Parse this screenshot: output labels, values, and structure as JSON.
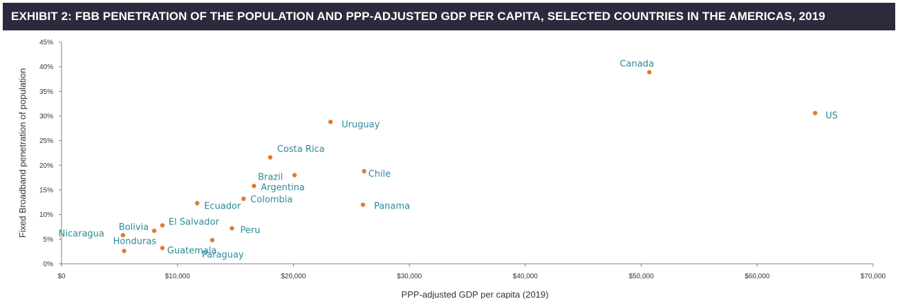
{
  "title": "EXHIBIT 2: FBB PENETRATION OF THE POPULATION AND PPP-ADJUSTED GDP PER CAPITA, SELECTED COUNTRIES IN THE AMERICAS, 2019",
  "colors": {
    "title_bg": "#2b2b3d",
    "point": "#e07b2e",
    "label": "#2a8b99",
    "axis": "#7f7f7f"
  },
  "chart_data": {
    "type": "scatter",
    "title": "EXHIBIT 2: FBB PENETRATION OF THE POPULATION AND PPP-ADJUSTED GDP PER CAPITA, SELECTED COUNTRIES IN THE AMERICAS, 2019",
    "xlabel": "PPP-adjusted GDP per capita (2019)",
    "ylabel": "Fixed Broadband penetration of population",
    "xlim": [
      0,
      70000
    ],
    "ylim": [
      0,
      45
    ],
    "x_ticks": [
      "$0",
      "$10,000",
      "$20,000",
      "$30,000",
      "$40,000",
      "$50,000",
      "$60,000",
      "$70,000"
    ],
    "y_ticks": [
      "0%",
      "5%",
      "10%",
      "15%",
      "20%",
      "25%",
      "30%",
      "35%",
      "40%",
      "45%"
    ],
    "grid": false,
    "points": [
      {
        "label": "Canada",
        "x": 50700,
        "y": 38.9
      },
      {
        "label": "US",
        "x": 65000,
        "y": 30.6
      },
      {
        "label": "Uruguay",
        "x": 23200,
        "y": 28.8
      },
      {
        "label": "Costa Rica",
        "x": 18000,
        "y": 21.6
      },
      {
        "label": "Chile",
        "x": 26100,
        "y": 18.8
      },
      {
        "label": "Brazil",
        "x": 20100,
        "y": 18.0
      },
      {
        "label": "Argentina",
        "x": 16600,
        "y": 15.8
      },
      {
        "label": "Colombia",
        "x": 15700,
        "y": 13.2
      },
      {
        "label": "Ecuador",
        "x": 11700,
        "y": 12.3
      },
      {
        "label": "Panama",
        "x": 26000,
        "y": 12.0
      },
      {
        "label": "El Salvador",
        "x": 8700,
        "y": 7.8
      },
      {
        "label": "Peru",
        "x": 14700,
        "y": 7.2
      },
      {
        "label": "Bolivia",
        "x": 8000,
        "y": 6.7
      },
      {
        "label": "Nicaragua",
        "x": 5300,
        "y": 5.8
      },
      {
        "label": "Paraguay",
        "x": 13000,
        "y": 4.8
      },
      {
        "label": "Guatemala",
        "x": 8700,
        "y": 3.2
      },
      {
        "label": "Honduras",
        "x": 5400,
        "y": 2.6
      }
    ]
  }
}
